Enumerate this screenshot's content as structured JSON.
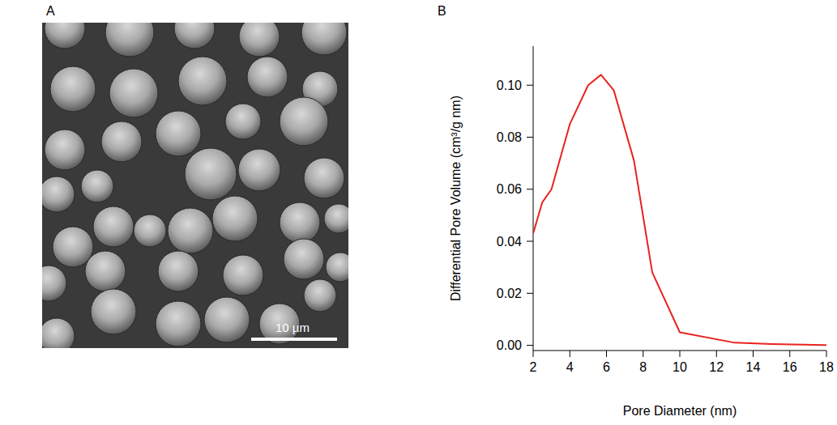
{
  "figure": {
    "panel_labels": [
      "A",
      "B"
    ],
    "image_scale_bar": "10 µm"
  },
  "chart_data": {
    "type": "line",
    "x_label": "Pore Diameter (nm)",
    "y_label": "Differential Pore Volume (cm³/g nm)",
    "x": [
      2,
      2.5,
      3,
      4,
      5,
      5.7,
      6.4,
      7.5,
      8.5,
      10,
      13,
      15,
      18
    ],
    "values": [
      0.043,
      0.055,
      0.06,
      0.085,
      0.1,
      0.104,
      0.098,
      0.071,
      0.028,
      0.005,
      0.001,
      0.0005,
      0.0001
    ],
    "color": "#e8231f",
    "xlim": [
      2,
      18
    ],
    "xticks": [
      2,
      4,
      6,
      8,
      10,
      12,
      14,
      16,
      18
    ],
    "ylim": [
      -0.002,
      0.115
    ],
    "yticks": [
      {
        "value": 0,
        "label": "0.00"
      },
      {
        "value": 0.02,
        "label": "0.02"
      },
      {
        "value": 0.04,
        "label": "0.04"
      },
      {
        "value": 0.06,
        "label": "0.06"
      },
      {
        "value": 0.08,
        "label": "0.08"
      },
      {
        "value": 0.1,
        "label": "0.10"
      }
    ],
    "grid": false
  }
}
